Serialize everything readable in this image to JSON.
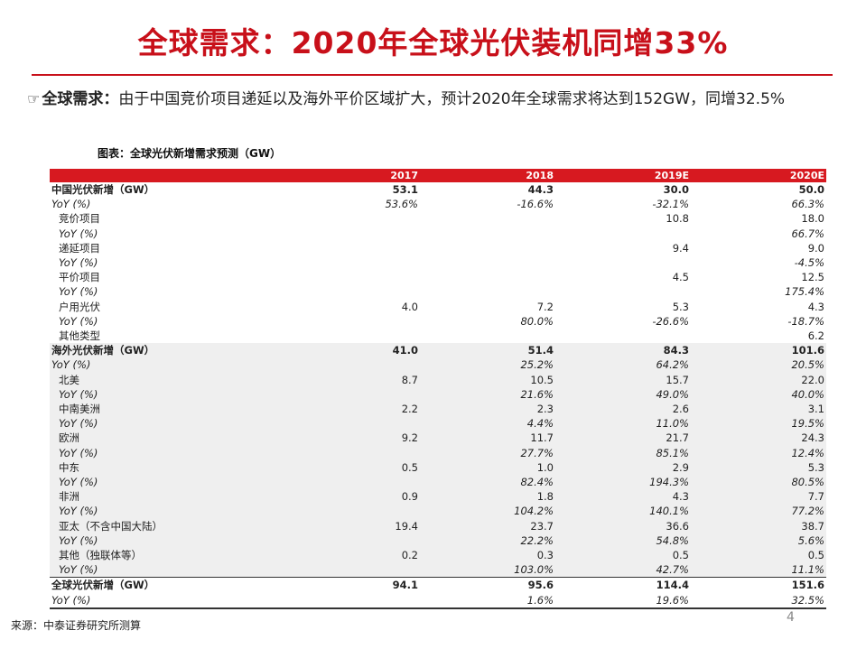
{
  "title": "全球需求：2020年全球光伏装机同增33%",
  "summary": {
    "icon": "☞",
    "lead": "全球需求：",
    "text": "由于中国竞价项目递延以及海外平价区域扩大，预计2020年全球需求将达到152GW，同增32.5%"
  },
  "caption": "图表：全球光伏新增需求预测（GW）",
  "table": {
    "headers": [
      "",
      "2017",
      "2018",
      "2019E",
      "2020E"
    ],
    "rows": [
      {
        "type": "grp",
        "cells": [
          "中国光伏新增（GW）",
          "53.1",
          "44.3",
          "30.0",
          "50.0"
        ]
      },
      {
        "type": "yoy",
        "cells": [
          "YoY (%)",
          "53.6%",
          "-16.6%",
          "-32.1%",
          "66.3%"
        ]
      },
      {
        "type": "sub",
        "cells": [
          "竞价项目",
          "",
          "",
          "10.8",
          "18.0"
        ]
      },
      {
        "type": "yoy sub",
        "cells": [
          "YoY (%)",
          "",
          "",
          "",
          "66.7%"
        ]
      },
      {
        "type": "sub",
        "cells": [
          "递延项目",
          "",
          "",
          "9.4",
          "9.0"
        ]
      },
      {
        "type": "yoy sub",
        "cells": [
          "YoY (%)",
          "",
          "",
          "",
          "-4.5%"
        ]
      },
      {
        "type": "sub",
        "cells": [
          "平价项目",
          "",
          "",
          "4.5",
          "12.5"
        ]
      },
      {
        "type": "yoy sub",
        "cells": [
          "YoY (%)",
          "",
          "",
          "",
          "175.4%"
        ]
      },
      {
        "type": "sub",
        "cells": [
          "户用光伏",
          "4.0",
          "7.2",
          "5.3",
          "4.3"
        ]
      },
      {
        "type": "yoy sub",
        "cells": [
          "YoY (%)",
          "",
          "80.0%",
          "-26.6%",
          "-18.7%"
        ]
      },
      {
        "type": "sub",
        "cells": [
          "其他类型",
          "",
          "",
          "",
          "6.2"
        ]
      },
      {
        "type": "grp shade",
        "cells": [
          "海外光伏新增（GW）",
          "41.0",
          "51.4",
          "84.3",
          "101.6"
        ]
      },
      {
        "type": "yoy shade",
        "cells": [
          "YoY (%)",
          "",
          "25.2%",
          "64.2%",
          "20.5%"
        ]
      },
      {
        "type": "sub shade",
        "cells": [
          "北美",
          "8.7",
          "10.5",
          "15.7",
          "22.0"
        ]
      },
      {
        "type": "yoy sub shade",
        "cells": [
          "YoY (%)",
          "",
          "21.6%",
          "49.0%",
          "40.0%"
        ]
      },
      {
        "type": "sub shade",
        "cells": [
          "中南美洲",
          "2.2",
          "2.3",
          "2.6",
          "3.1"
        ]
      },
      {
        "type": "yoy sub shade",
        "cells": [
          "YoY (%)",
          "",
          "4.4%",
          "11.0%",
          "19.5%"
        ]
      },
      {
        "type": "sub shade",
        "cells": [
          "欧洲",
          "9.2",
          "11.7",
          "21.7",
          "24.3"
        ]
      },
      {
        "type": "yoy sub shade",
        "cells": [
          "YoY (%)",
          "",
          "27.7%",
          "85.1%",
          "12.4%"
        ]
      },
      {
        "type": "sub shade",
        "cells": [
          "中东",
          "0.5",
          "1.0",
          "2.9",
          "5.3"
        ]
      },
      {
        "type": "yoy sub shade",
        "cells": [
          "YoY (%)",
          "",
          "82.4%",
          "194.3%",
          "80.5%"
        ]
      },
      {
        "type": "sub shade",
        "cells": [
          "非洲",
          "0.9",
          "1.8",
          "4.3",
          "7.7"
        ]
      },
      {
        "type": "yoy sub shade",
        "cells": [
          "YoY (%)",
          "",
          "104.2%",
          "140.1%",
          "77.2%"
        ]
      },
      {
        "type": "sub shade",
        "cells": [
          "亚太（不含中国大陆）",
          "19.4",
          "23.7",
          "36.6",
          "38.7"
        ]
      },
      {
        "type": "yoy sub shade",
        "cells": [
          "YoY (%)",
          "",
          "22.2%",
          "54.8%",
          "5.6%"
        ]
      },
      {
        "type": "sub shade",
        "cells": [
          "其他（独联体等）",
          "0.2",
          "0.3",
          "0.5",
          "0.5"
        ]
      },
      {
        "type": "yoy sub shade",
        "cells": [
          "YoY (%)",
          "",
          "103.0%",
          "42.7%",
          "11.1%"
        ]
      },
      {
        "type": "grp total",
        "cells": [
          "全球光伏新增（GW）",
          "94.1",
          "95.6",
          "114.4",
          "151.6"
        ]
      },
      {
        "type": "yoy last",
        "cells": [
          "YoY (%)",
          "",
          "1.6%",
          "19.6%",
          "32.5%"
        ]
      }
    ]
  },
  "source": "来源：中泰证券研究所测算",
  "page_number": "4"
}
